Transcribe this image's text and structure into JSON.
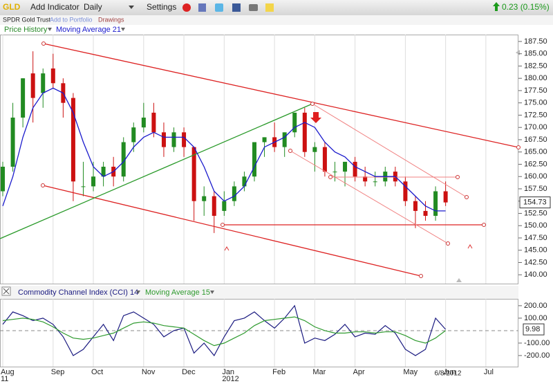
{
  "toolbar": {
    "symbol": "GLD",
    "add_indicator": "Add Indicator",
    "period": "Daily",
    "settings": "Settings",
    "change": "0.23 (0.15%)"
  },
  "subbar": {
    "name": "SPDR Gold Trust",
    "add_to_portfolio": "Add to Portfolio",
    "drawings": "Drawings"
  },
  "chart_data": [
    {
      "type": "candlestick",
      "title": "Price History",
      "up_color": "#228b22",
      "down_color": "#cc1111",
      "open": [
        157,
        162,
        172,
        181,
        177,
        182,
        179,
        176,
        158,
        158,
        160,
        162,
        160,
        167,
        170,
        173,
        169,
        166,
        169,
        166,
        155,
        156,
        153,
        155,
        158,
        160,
        167,
        168,
        166,
        169,
        173,
        165,
        166,
        161,
        161,
        163,
        160,
        159,
        159,
        161,
        159,
        155,
        153,
        152,
        157,
        null,
        null,
        null,
        null
      ],
      "high": [
        163,
        175,
        180,
        185.5,
        182,
        185,
        180,
        177,
        163,
        163,
        163,
        164,
        168,
        171,
        175,
        175,
        171,
        170,
        170,
        166,
        158,
        157,
        157,
        159,
        161,
        167,
        168,
        171,
        169,
        173,
        174,
        167,
        167,
        163,
        163,
        164,
        162,
        161,
        162,
        162,
        160,
        156,
        155,
        158,
        159,
        null,
        null,
        null,
        null
      ],
      "low": [
        156,
        161,
        170,
        171,
        174,
        178,
        172,
        155,
        156,
        157,
        158,
        158,
        159,
        165,
        169,
        168,
        164,
        165,
        164,
        151,
        152,
        148.5,
        152,
        154,
        157,
        159,
        164,
        165,
        164,
        168,
        164,
        161,
        160,
        159,
        158,
        159,
        158,
        158,
        158,
        158,
        154,
        149.5,
        151,
        151,
        154,
        null,
        null,
        null,
        null
      ],
      "close": [
        162,
        172,
        180,
        176,
        181,
        179,
        175,
        159,
        158,
        160,
        162,
        160,
        167,
        170,
        172,
        169,
        166,
        169,
        166,
        155,
        156,
        152,
        155,
        158,
        160,
        167,
        168,
        166,
        169,
        173,
        165,
        166,
        161,
        161,
        163,
        160,
        159,
        159,
        161,
        159,
        155,
        153,
        152,
        157,
        154.73,
        null,
        null,
        null,
        null
      ],
      "series": [
        {
          "name": "Moving Average 21",
          "color": "#1a1acc",
          "values": [
            154,
            160,
            168,
            174,
            177,
            178,
            177,
            173,
            167,
            162,
            160,
            161,
            163,
            166,
            168,
            169,
            168,
            168,
            168,
            166,
            162,
            157,
            155,
            156,
            158,
            162,
            166,
            167,
            168,
            170,
            171,
            170,
            167,
            165,
            164,
            162,
            161,
            160,
            160,
            160,
            158,
            156,
            154,
            153,
            153,
            null,
            null,
            null,
            null
          ]
        }
      ],
      "ylim": [
        138.2,
        188.9
      ],
      "yticks": [
        {
          "value": 140,
          "label": "140.00"
        },
        {
          "value": 142.5,
          "label": "142.50"
        },
        {
          "value": 145,
          "label": "145.00"
        },
        {
          "value": 147.5,
          "label": "147.50"
        },
        {
          "value": 150,
          "label": "150.00"
        },
        {
          "value": 152.5,
          "label": "152.50"
        },
        {
          "value": 155,
          "label": "155.00"
        },
        {
          "value": 157.5,
          "label": "157.50"
        },
        {
          "value": 160,
          "label": "160.00"
        },
        {
          "value": 162.5,
          "label": "162.50"
        },
        {
          "value": 165,
          "label": "165.00"
        },
        {
          "value": 167.5,
          "label": "167.50"
        },
        {
          "value": 170,
          "label": "170.00"
        },
        {
          "value": 172.5,
          "label": "172.50"
        },
        {
          "value": 175,
          "label": "175.00"
        },
        {
          "value": 177.5,
          "label": "177.50"
        },
        {
          "value": 180,
          "label": "180.00"
        },
        {
          "value": 182.5,
          "label": "182.50"
        },
        {
          "value": 185,
          "label": "185.00"
        },
        {
          "value": 187.5,
          "label": "187.50"
        }
      ],
      "grid": "vertical"
    },
    {
      "type": "line",
      "categories": [
        "Aug",
        null,
        null,
        null,
        null,
        "Sep",
        null,
        null,
        null,
        "Oct",
        null,
        null,
        null,
        null,
        "Nov",
        null,
        null,
        null,
        "Dec",
        null,
        null,
        null,
        "Jan",
        null,
        null,
        null,
        null,
        "Feb",
        null,
        null,
        null,
        "Mar",
        null,
        null,
        null,
        "Apr",
        null,
        null,
        null,
        null,
        "May",
        null,
        null,
        null,
        "Jun",
        null,
        null,
        null,
        "Jul"
      ],
      "year_labels": [
        "11",
        null,
        null,
        null,
        null,
        null,
        null,
        null,
        null,
        null,
        null,
        null,
        null,
        null,
        null,
        null,
        null,
        null,
        null,
        null,
        null,
        null,
        "2012",
        null,
        null,
        null,
        null,
        null,
        null,
        null,
        null,
        null,
        null,
        null,
        null,
        null,
        null,
        null,
        null,
        null,
        null,
        null,
        null,
        null,
        null,
        null,
        null,
        null,
        null
      ],
      "date_label": "6/8/2012",
      "series": [
        {
          "name": "Commodity Channel Index (CCI) 14",
          "color": "#1a1a80",
          "values": [
            50,
            150,
            120,
            80,
            100,
            50,
            -50,
            -200,
            -150,
            -50,
            50,
            -80,
            120,
            150,
            100,
            50,
            -50,
            0,
            20,
            -180,
            -100,
            -200,
            -50,
            80,
            100,
            150,
            80,
            20,
            100,
            200,
            -100,
            -60,
            -80,
            -30,
            50,
            -50,
            -20,
            -30,
            40,
            -20,
            -150,
            -200,
            -150,
            100,
            9.98,
            null,
            null,
            null,
            null
          ]
        },
        {
          "name": "Moving Average 15",
          "color": "#2e9a2e",
          "values": [
            80,
            90,
            100,
            90,
            70,
            30,
            -20,
            -60,
            -70,
            -60,
            -40,
            -20,
            20,
            60,
            70,
            60,
            40,
            30,
            20,
            -30,
            -80,
            -120,
            -100,
            -60,
            -20,
            40,
            80,
            90,
            100,
            110,
            80,
            30,
            0,
            -20,
            -20,
            -10,
            -10,
            -20,
            -10,
            -10,
            -40,
            -80,
            -100,
            -60,
            0,
            null,
            null,
            null,
            null
          ]
        }
      ],
      "ylim": [
        -289,
        255
      ],
      "yticks": [
        {
          "value": -200,
          "label": "-200.00"
        },
        {
          "value": -100,
          "label": "-100.00"
        },
        {
          "value": 100,
          "label": "100.00"
        },
        {
          "value": 200,
          "label": "200.00"
        }
      ],
      "baseline": 0,
      "grid": "vertical"
    }
  ]
}
